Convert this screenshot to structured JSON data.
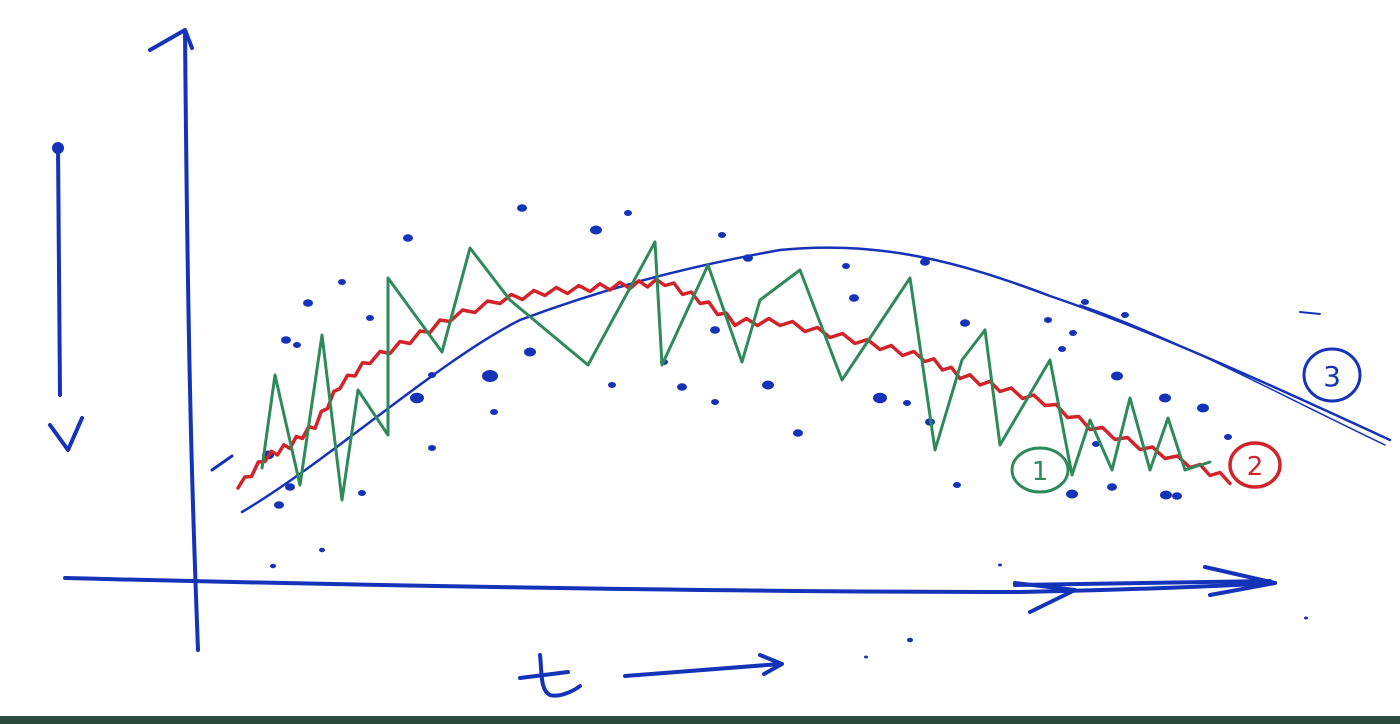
{
  "labels": {
    "y_axis": "V",
    "x_axis": "t",
    "curve_1": "1",
    "curve_2": "2",
    "curve_3": "3"
  },
  "colors": {
    "ink_blue": "#1533b8",
    "ink_red": "#d2232a",
    "ink_green": "#2f8a5a",
    "bottom_strip": "#2e4a3c",
    "background": "#ffffff"
  },
  "icons": {
    "axis_arrows": "arrow-icon"
  }
}
